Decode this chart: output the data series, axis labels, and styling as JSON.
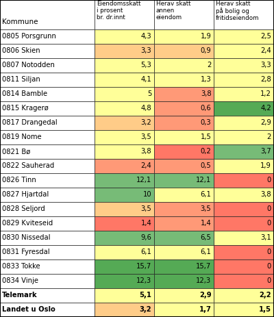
{
  "headers": [
    "Eiendomsskatt\ni prosent\nbr. dr.innt",
    "Herav skatt\nannen\neiendom",
    "Herav skatt\npå bolig og\nfritidseiendom"
  ],
  "col0_label": "Kommune",
  "rows": [
    {
      "name": "0805 Porsgrunn",
      "v": [
        4.3,
        1.9,
        2.5
      ]
    },
    {
      "name": "0806 Skien",
      "v": [
        3.3,
        0.9,
        2.4
      ]
    },
    {
      "name": "0807 Notodden",
      "v": [
        5.3,
        2.0,
        3.3
      ]
    },
    {
      "name": "0811 Siljan",
      "v": [
        4.1,
        1.3,
        2.8
      ]
    },
    {
      "name": "0814 Bamble",
      "v": [
        5.0,
        3.8,
        1.2
      ]
    },
    {
      "name": "0815 Kragerø",
      "v": [
        4.8,
        0.6,
        4.2
      ]
    },
    {
      "name": "0817 Drangedal",
      "v": [
        3.2,
        0.3,
        2.9
      ]
    },
    {
      "name": "0819 Nome",
      "v": [
        3.5,
        1.5,
        2.0
      ]
    },
    {
      "name": "0821 Bø",
      "v": [
        3.8,
        0.2,
        3.7
      ]
    },
    {
      "name": "0822 Sauherad",
      "v": [
        2.4,
        0.5,
        1.9
      ]
    },
    {
      "name": "0826 Tinn",
      "v": [
        12.1,
        12.1,
        0.0
      ]
    },
    {
      "name": "0827 Hjartdal",
      "v": [
        10.0,
        6.1,
        3.8
      ]
    },
    {
      "name": "0828 Seljord",
      "v": [
        3.5,
        3.5,
        0.0
      ]
    },
    {
      "name": "0829 Kviteseid",
      "v": [
        1.4,
        1.4,
        0.0
      ]
    },
    {
      "name": "0830 Nissedal",
      "v": [
        9.6,
        6.5,
        3.1
      ]
    },
    {
      "name": "0831 Fyresdal",
      "v": [
        6.1,
        6.1,
        0.0
      ]
    },
    {
      "name": "0833 Tokke",
      "v": [
        15.7,
        15.7,
        0.0
      ]
    },
    {
      "name": "0834 Vinje",
      "v": [
        12.3,
        12.3,
        0.0
      ]
    },
    {
      "name": "Telemark",
      "v": [
        5.1,
        2.9,
        2.2
      ]
    },
    {
      "name": "Landet u Oslo",
      "v": [
        3.2,
        1.7,
        1.5
      ]
    }
  ],
  "cell_colors": [
    [
      "#FFFF99",
      "#FFFF99",
      "#FFFF99"
    ],
    [
      "#FFCC88",
      "#FFCC88",
      "#FFFF99"
    ],
    [
      "#FFFF99",
      "#FFFF99",
      "#FFFF99"
    ],
    [
      "#FFFF99",
      "#FFFF99",
      "#FFFF99"
    ],
    [
      "#FFFF99",
      "#FF9977",
      "#FFFF99"
    ],
    [
      "#FFFF99",
      "#FF9977",
      "#55AA55"
    ],
    [
      "#FFCC88",
      "#FF9977",
      "#FFFF99"
    ],
    [
      "#FFFF99",
      "#FFFF99",
      "#FFFF99"
    ],
    [
      "#FFFF99",
      "#FF7766",
      "#77BB77"
    ],
    [
      "#FF9977",
      "#FF9977",
      "#FFFF99"
    ],
    [
      "#77BB77",
      "#77BB77",
      "#FF7766"
    ],
    [
      "#77BB77",
      "#FFFF99",
      "#FFFF99"
    ],
    [
      "#FFCC88",
      "#FF9977",
      "#FF7766"
    ],
    [
      "#FF7766",
      "#FF9977",
      "#FF7766"
    ],
    [
      "#77BB77",
      "#77BB77",
      "#FFFF99"
    ],
    [
      "#FFFF99",
      "#FFFF99",
      "#FF7766"
    ],
    [
      "#55AA55",
      "#55AA55",
      "#FF7766"
    ],
    [
      "#55AA55",
      "#55AA55",
      "#FF7766"
    ],
    [
      "#FFFF99",
      "#FFFF99",
      "#FFFF99"
    ],
    [
      "#FFCC88",
      "#FFFF99",
      "#FFFF99"
    ]
  ],
  "bold_rows": [
    18,
    19
  ],
  "background": "#ffffff",
  "figsize": [
    4.0,
    4.63
  ],
  "dpi": 100
}
